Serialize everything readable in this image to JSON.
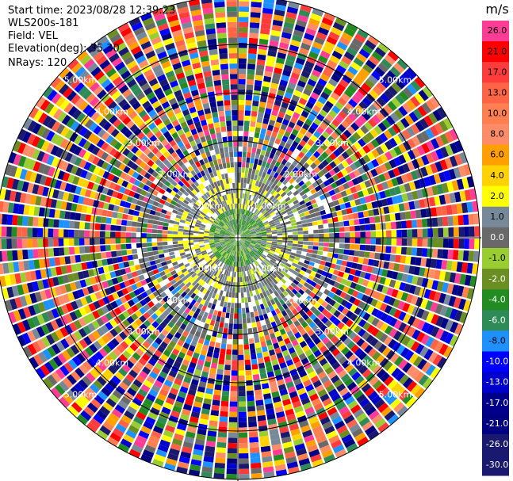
{
  "header": {
    "start_time": "Start time: 2023/08/28 12:39:23",
    "instrument": "WLS200s-181",
    "field": "Field: VEL",
    "elevation": "Elevation(deg): 35.30",
    "nrays": "NRays: 120"
  },
  "chart_data": {
    "type": "heatmap",
    "projection": "polar",
    "grid": true,
    "range_rings": [
      {
        "label": "1.00km",
        "value": 1.0
      },
      {
        "label": "2.00km",
        "value": 2.0
      },
      {
        "label": "3.00km",
        "value": 3.0
      },
      {
        "label": "4.00km",
        "value": 4.0
      },
      {
        "label": "5.00km",
        "value": 5.0
      }
    ],
    "max_range_km": 5.0,
    "rays": 120,
    "colorbar": {
      "unit": "m/s",
      "levels": [
        {
          "label": "26.0",
          "value": 26.0,
          "color": "#ff3c96"
        },
        {
          "label": "21.0",
          "value": 21.0,
          "color": "#ff0000"
        },
        {
          "label": "17.0",
          "value": 17.0,
          "color": "#ff3c3c"
        },
        {
          "label": "13.0",
          "value": 13.0,
          "color": "#ff6446"
        },
        {
          "label": "10.0",
          "value": 10.0,
          "color": "#ff7f50"
        },
        {
          "label": "8.0",
          "value": 8.0,
          "color": "#ff8c69"
        },
        {
          "label": "6.0",
          "value": 6.0,
          "color": "#ffa000"
        },
        {
          "label": "4.0",
          "value": 4.0,
          "color": "#ffd200"
        },
        {
          "label": "2.0",
          "value": 2.0,
          "color": "#ffff00"
        },
        {
          "label": "1.0",
          "value": 1.0,
          "color": "#778899"
        },
        {
          "label": "0.0",
          "value": 0.0,
          "color": "#696969"
        },
        {
          "label": "-1.0",
          "value": -1.0,
          "color": "#9acd32"
        },
        {
          "label": "-2.0",
          "value": -2.0,
          "color": "#6b8e23"
        },
        {
          "label": "-4.0",
          "value": -4.0,
          "color": "#228b22"
        },
        {
          "label": "-6.0",
          "value": -6.0,
          "color": "#2e8b57"
        },
        {
          "label": "-8.0",
          "value": -8.0,
          "color": "#1e90ff"
        },
        {
          "label": "-10.0",
          "value": -10.0,
          "color": "#0000ff"
        },
        {
          "label": "-13.0",
          "value": -13.0,
          "color": "#0000cd"
        },
        {
          "label": "-17.0",
          "value": -17.0,
          "color": "#00008b"
        },
        {
          "label": "-21.0",
          "value": -21.0,
          "color": "#000080"
        },
        {
          "label": "-26.0",
          "value": -26.0,
          "color": "#191970"
        },
        {
          "label": "-30.0",
          "value": -30.0,
          "color": "#191970"
        }
      ]
    }
  }
}
